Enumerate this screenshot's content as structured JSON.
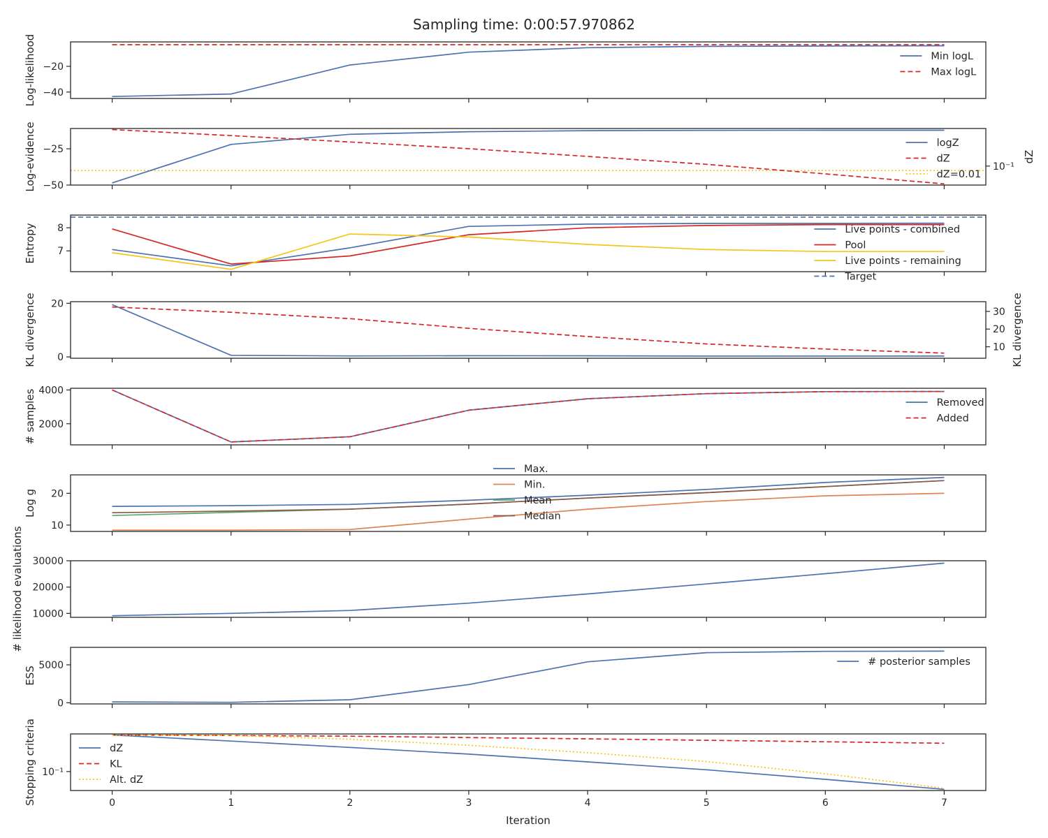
{
  "figure": {
    "title": "Sampling time: 0:00:57.970862",
    "xlabel": "Iteration"
  },
  "colors": {
    "blue": "#4c72b0",
    "red": "#d62728",
    "yellow": "#f5c518",
    "orange": "#dd8452",
    "green": "#55a868",
    "brown": "#8c564b"
  },
  "chart_data": [
    {
      "id": "loglikelihood",
      "type": "line",
      "ylabel": "Log-likelihood",
      "ylim": [
        -45,
        -1
      ],
      "yticks": [
        -40,
        -20
      ],
      "ytick_labels": [
        "−40",
        "−20"
      ],
      "legend_position": "upper-right",
      "x": [
        0,
        1,
        2,
        3,
        4,
        5,
        6,
        7
      ],
      "series": [
        {
          "name": "Min logL",
          "color": "blue",
          "dash": "solid",
          "values": [
            -43.5,
            -41.5,
            -19.0,
            -9.0,
            -5.5,
            -4.5,
            -4.2,
            -4.0
          ]
        },
        {
          "name": "Max logL",
          "color": "red",
          "dash": "dashed",
          "values": [
            -3.2,
            -3.2,
            -3.2,
            -3.2,
            -3.2,
            -3.2,
            -3.2,
            -3.2
          ]
        }
      ]
    },
    {
      "id": "logevidence",
      "type": "line",
      "ylabel": "Log-evidence",
      "ylim": [
        -50,
        -11
      ],
      "yticks": [
        -50,
        -25
      ],
      "ytick_labels": [
        "−50",
        "−25"
      ],
      "ylabel_right": "dZ",
      "y2scale": "log",
      "y2lim": [
        0.0142,
        4.8
      ],
      "y2ticks": [
        0.1
      ],
      "y2tick_labels": [
        "10⁻¹"
      ],
      "legend_position": "upper-right",
      "x": [
        0,
        1,
        2,
        3,
        4,
        5,
        6,
        7
      ],
      "series": [
        {
          "name": "logZ",
          "color": "blue",
          "dash": "solid",
          "axis": "left",
          "values": [
            -48.5,
            -22.0,
            -15.0,
            -13.2,
            -12.5,
            -12.3,
            -12.2,
            -12.2
          ]
        },
        {
          "name": "dZ",
          "color": "red",
          "dash": "dashed",
          "axis": "right",
          "values": [
            4.3,
            2.3,
            1.2,
            0.6,
            0.27,
            0.12,
            0.045,
            0.016
          ]
        }
      ],
      "hlines": [
        {
          "name": "dZ=0.01",
          "color": "yellow",
          "dash": "dotted",
          "axis": "left",
          "y": -40
        }
      ]
    },
    {
      "id": "entropy",
      "type": "line",
      "ylabel": "Entropy",
      "ylim": [
        6.1,
        8.55
      ],
      "yticks": [
        7,
        8
      ],
      "ytick_labels": [
        "7",
        "8"
      ],
      "legend_position": "right",
      "x": [
        0,
        1,
        2,
        3,
        4,
        5,
        6,
        7
      ],
      "series": [
        {
          "name": "Live points - combined",
          "color": "blue",
          "dash": "solid",
          "values": [
            7.06,
            6.35,
            7.13,
            8.06,
            8.16,
            8.19,
            8.19,
            8.2
          ]
        },
        {
          "name": "Pool",
          "color": "red",
          "dash": "solid",
          "values": [
            7.95,
            6.43,
            6.78,
            7.7,
            8.0,
            8.1,
            8.14,
            8.14
          ]
        },
        {
          "name": "Live points - remaining",
          "color": "yellow",
          "dash": "solid",
          "values": [
            6.92,
            6.2,
            7.73,
            7.6,
            7.28,
            7.06,
            6.97,
            6.97
          ]
        }
      ],
      "hlines": [
        {
          "name": "Target",
          "color": "blue",
          "dash": "dashed",
          "axis": "left",
          "y": 8.46
        }
      ]
    },
    {
      "id": "kl",
      "type": "line",
      "ylabel": "KL divergence",
      "ylim": [
        -0.5,
        20.6
      ],
      "yticks": [
        0,
        20
      ],
      "ytick_labels": [
        "0",
        "20"
      ],
      "ylabel_right": "KL divergence",
      "y2lim": [
        3.5,
        35.5
      ],
      "y2ticks": [
        10,
        20,
        30
      ],
      "y2tick_labels": [
        "10",
        "20",
        "30"
      ],
      "x": [
        0,
        1,
        2,
        3,
        4,
        5,
        6,
        7
      ],
      "series": [
        {
          "name": "",
          "color": "blue",
          "dash": "solid",
          "axis": "left",
          "values": [
            19.5,
            0.6,
            0.35,
            0.45,
            0.4,
            0.3,
            0.3,
            0.3
          ]
        },
        {
          "name": "",
          "color": "red",
          "dash": "dashed",
          "axis": "right",
          "values": [
            32.5,
            29.5,
            25.9,
            20.4,
            15.8,
            11.6,
            8.7,
            6.4
          ]
        }
      ]
    },
    {
      "id": "samples",
      "type": "line",
      "ylabel": "# samples",
      "ylim": [
        750,
        4100
      ],
      "yticks": [
        2000,
        4000
      ],
      "ytick_labels": [
        "2000",
        "4000"
      ],
      "legend_position": "upper-right",
      "x": [
        0,
        1,
        2,
        3,
        4,
        5,
        6,
        7
      ],
      "series": [
        {
          "name": "Removed",
          "color": "blue",
          "dash": "solid",
          "values": [
            4000,
            920,
            1230,
            2800,
            3480,
            3780,
            3900,
            3910
          ]
        },
        {
          "name": "Added",
          "color": "red",
          "dash": "dashed",
          "values": [
            4000,
            920,
            1230,
            2800,
            3480,
            3780,
            3900,
            3910
          ]
        }
      ]
    },
    {
      "id": "logg",
      "type": "line",
      "ylabel": "Log g",
      "ylim": [
        8,
        25.8
      ],
      "yticks": [
        10,
        20
      ],
      "ytick_labels": [
        "10",
        "20"
      ],
      "legend_position": "upper-center",
      "x": [
        0,
        1,
        2,
        3,
        4,
        5,
        6,
        7
      ],
      "series": [
        {
          "name": "Max.",
          "color": "blue",
          "dash": "solid",
          "values": [
            15.9,
            16.1,
            16.5,
            17.8,
            19.4,
            21.2,
            23.4,
            25.0
          ]
        },
        {
          "name": "Min.",
          "color": "orange",
          "dash": "solid",
          "values": [
            8.4,
            8.4,
            8.6,
            11.9,
            15.0,
            17.4,
            19.2,
            20.0
          ]
        },
        {
          "name": "Mean",
          "color": "green",
          "dash": "solid",
          "values": [
            13.0,
            14.0,
            15.0,
            16.6,
            18.5,
            20.2,
            22.1,
            24.0
          ]
        },
        {
          "name": "Median",
          "color": "brown",
          "dash": "solid",
          "values": [
            13.9,
            14.4,
            15.0,
            16.6,
            18.5,
            20.2,
            22.1,
            24.0
          ]
        }
      ]
    },
    {
      "id": "likelihood_evals",
      "type": "line",
      "ylabel": "# likelihood evaluations",
      "ylim": [
        8500,
        30000
      ],
      "yticks": [
        10000,
        20000,
        30000
      ],
      "ytick_labels": [
        "10000",
        "20000",
        "30000"
      ],
      "x": [
        0,
        1,
        2,
        3,
        4,
        5,
        6,
        7
      ],
      "series": [
        {
          "name": "",
          "color": "blue",
          "dash": "solid",
          "values": [
            9100,
            10000,
            11100,
            13900,
            17400,
            21200,
            25100,
            29100
          ]
        }
      ]
    },
    {
      "id": "ess",
      "type": "line",
      "ylabel": "ESS",
      "ylim": [
        -150,
        7300
      ],
      "yticks": [
        0,
        5000
      ],
      "ytick_labels": [
        "0",
        "5000"
      ],
      "legend_position": "upper-right",
      "x": [
        0,
        1,
        2,
        3,
        4,
        5,
        6,
        7
      ],
      "series": [
        {
          "name": "# posterior samples",
          "color": "blue",
          "dash": "solid",
          "values": [
            120,
            60,
            400,
            2400,
            5400,
            6600,
            6780,
            6800
          ]
        }
      ]
    },
    {
      "id": "stopping",
      "type": "line",
      "ylabel": "Stopping criteria",
      "yscale": "log",
      "ylim": [
        0.0142,
        4.8
      ],
      "yticks": [
        0.1
      ],
      "ytick_labels": [
        "10⁻¹"
      ],
      "legend_position": "left",
      "x": [
        0,
        1,
        2,
        3,
        4,
        5,
        6,
        7
      ],
      "series": [
        {
          "name": "dZ",
          "color": "blue",
          "dash": "solid",
          "values": [
            4.3,
            2.3,
            1.2,
            0.6,
            0.27,
            0.12,
            0.045,
            0.016
          ]
        },
        {
          "name": "KL",
          "color": "red",
          "dash": "dashed",
          "values": [
            4.3,
            4.1,
            3.8,
            3.3,
            2.9,
            2.5,
            2.15,
            1.85
          ]
        },
        {
          "name": "Alt. dZ",
          "color": "yellow",
          "dash": "dotted",
          "values": [
            4.3,
            4.1,
            2.8,
            1.5,
            0.7,
            0.28,
            0.08,
            0.018
          ]
        }
      ]
    }
  ],
  "xaxis": {
    "ticks": [
      0,
      1,
      2,
      3,
      4,
      5,
      6,
      7
    ],
    "tick_labels": [
      "0",
      "1",
      "2",
      "3",
      "4",
      "5",
      "6",
      "7"
    ],
    "xlim": [
      -0.35,
      7.35
    ]
  }
}
